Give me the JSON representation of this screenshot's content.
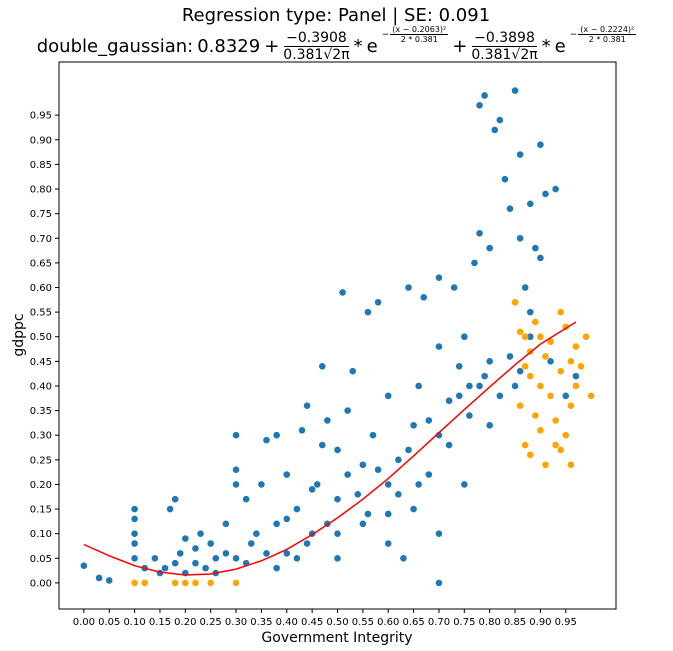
{
  "chart_data": {
    "type": "scatter",
    "title": "Regression type: Panel | SE: 0.091",
    "formula": {
      "name": "double_gaussian:",
      "constant": "0.8329",
      "terms": [
        {
          "op": "+",
          "numerator": "−0.3908",
          "denominator": "0.381√2π",
          "times": "*",
          "base": "e",
          "exp_sign": "−",
          "exp_numerator": "(x − 0.2063)²",
          "exp_denominator": "2 * 0.381"
        },
        {
          "op": "+",
          "numerator": "−0.3898",
          "denominator": "0.381√2π",
          "times": "*",
          "base": "e",
          "exp_sign": "−",
          "exp_numerator": "(x − 0.2224)²",
          "exp_denominator": "2 * 0.381"
        }
      ]
    },
    "x_label": "Government Integrity",
    "y_label": "gdppc",
    "xlim": [
      -0.049,
      1.049
    ],
    "ylim": [
      -0.053,
      1.058
    ],
    "xticks": [
      {
        "value": 0,
        "label": "0.00"
      },
      {
        "value": 0.05,
        "label": "0.05"
      },
      {
        "value": 0.1,
        "label": "0.10"
      },
      {
        "value": 0.15,
        "label": "0.15"
      },
      {
        "value": 0.2,
        "label": "0.20"
      },
      {
        "value": 0.25,
        "label": "0.25"
      },
      {
        "value": 0.3,
        "label": "0.30"
      },
      {
        "value": 0.35,
        "label": "0.35"
      },
      {
        "value": 0.4,
        "label": "0.40"
      },
      {
        "value": 0.45,
        "label": "0.45"
      },
      {
        "value": 0.5,
        "label": "0.50"
      },
      {
        "value": 0.55,
        "label": "0.55"
      },
      {
        "value": 0.6,
        "label": "0.60"
      },
      {
        "value": 0.65,
        "label": "0.65"
      },
      {
        "value": 0.7,
        "label": "0.70"
      },
      {
        "value": 0.75,
        "label": "0.75"
      },
      {
        "value": 0.8,
        "label": "0.80"
      },
      {
        "value": 0.85,
        "label": "0.85"
      },
      {
        "value": 0.9,
        "label": "0.90"
      },
      {
        "value": 0.95,
        "label": "0.95"
      }
    ],
    "yticks": [
      {
        "value": 0,
        "label": "0.00"
      },
      {
        "value": 0.05,
        "label": "0.05"
      },
      {
        "value": 0.1,
        "label": "0.10"
      },
      {
        "value": 0.15,
        "label": "0.15"
      },
      {
        "value": 0.2,
        "label": "0.20"
      },
      {
        "value": 0.25,
        "label": "0.25"
      },
      {
        "value": 0.3,
        "label": "0.30"
      },
      {
        "value": 0.35,
        "label": "0.35"
      },
      {
        "value": 0.4,
        "label": "0.40"
      },
      {
        "value": 0.45,
        "label": "0.45"
      },
      {
        "value": 0.5,
        "label": "0.50"
      },
      {
        "value": 0.55,
        "label": "0.55"
      },
      {
        "value": 0.6,
        "label": "0.60"
      },
      {
        "value": 0.65,
        "label": "0.65"
      },
      {
        "value": 0.7,
        "label": "0.70"
      },
      {
        "value": 0.75,
        "label": "0.75"
      },
      {
        "value": 0.8,
        "label": "0.80"
      },
      {
        "value": 0.85,
        "label": "0.85"
      },
      {
        "value": 0.9,
        "label": "0.90"
      },
      {
        "value": 0.95,
        "label": "0.95"
      }
    ],
    "series": [
      {
        "kind": "points",
        "color": "#1f77b4",
        "x": [
          0.0,
          0.03,
          0.05,
          0.1,
          0.1,
          0.1,
          0.1,
          0.1,
          0.12,
          0.14,
          0.15,
          0.17,
          0.18,
          0.19,
          0.2,
          0.22,
          0.23,
          0.25,
          0.26,
          0.28,
          0.3,
          0.3,
          0.3,
          0.3,
          0.32,
          0.33,
          0.35,
          0.36,
          0.38,
          0.38,
          0.4,
          0.4,
          0.42,
          0.43,
          0.44,
          0.45,
          0.46,
          0.47,
          0.48,
          0.5,
          0.5,
          0.5,
          0.51,
          0.52,
          0.53,
          0.55,
          0.55,
          0.56,
          0.57,
          0.58,
          0.6,
          0.6,
          0.6,
          0.62,
          0.63,
          0.64,
          0.65,
          0.65,
          0.66,
          0.67,
          0.68,
          0.7,
          0.7,
          0.7,
          0.7,
          0.7,
          0.72,
          0.73,
          0.74,
          0.75,
          0.75,
          0.76,
          0.77,
          0.78,
          0.78,
          0.79,
          0.8,
          0.8,
          0.8,
          0.81,
          0.82,
          0.83,
          0.84,
          0.85,
          0.85,
          0.86,
          0.86,
          0.87,
          0.88,
          0.88,
          0.89,
          0.9,
          0.9,
          0.91,
          0.92,
          0.93,
          0.95,
          0.97,
          0.84,
          0.82,
          0.79,
          0.76,
          0.72,
          0.68,
          0.64,
          0.62,
          0.58,
          0.54,
          0.52,
          0.48,
          0.44,
          0.42,
          0.38,
          0.36,
          0.34,
          0.32,
          0.28,
          0.26,
          0.24,
          0.22,
          0.2,
          0.18,
          0.16,
          0.47,
          0.56,
          0.6,
          0.66,
          0.74,
          0.78,
          0.86,
          0.88,
          0.4,
          0.45,
          0.5
        ],
        "values": [
          0.035,
          0.01,
          0.005,
          0.15,
          0.13,
          0.1,
          0.08,
          0.05,
          0.03,
          0.05,
          0.02,
          0.15,
          0.17,
          0.06,
          0.09,
          0.04,
          0.1,
          0.08,
          0.02,
          0.12,
          0.3,
          0.23,
          0.2,
          0.05,
          0.17,
          0.08,
          0.2,
          0.29,
          0.12,
          0.3,
          0.06,
          0.22,
          0.15,
          0.31,
          0.36,
          0.1,
          0.2,
          0.44,
          0.33,
          0.05,
          0.17,
          0.27,
          0.59,
          0.35,
          0.43,
          0.12,
          0.24,
          0.55,
          0.3,
          0.57,
          0.08,
          0.2,
          0.38,
          0.25,
          0.05,
          0.6,
          0.15,
          0.32,
          0.4,
          0.58,
          0.22,
          0.0,
          0.1,
          0.3,
          0.48,
          0.62,
          0.37,
          0.6,
          0.44,
          0.2,
          0.5,
          0.4,
          0.65,
          0.71,
          0.97,
          0.99,
          0.32,
          0.45,
          0.68,
          0.92,
          0.94,
          0.82,
          0.76,
          1.0,
          0.4,
          0.87,
          0.7,
          0.6,
          0.5,
          0.77,
          0.68,
          0.89,
          0.66,
          0.79,
          0.45,
          0.8,
          0.38,
          0.42,
          0.46,
          0.38,
          0.42,
          0.34,
          0.28,
          0.33,
          0.27,
          0.18,
          0.23,
          0.18,
          0.22,
          0.12,
          0.08,
          0.05,
          0.03,
          0.06,
          0.1,
          0.04,
          0.06,
          0.05,
          0.03,
          0.07,
          0.02,
          0.04,
          0.03,
          0.28,
          0.14,
          0.14,
          0.2,
          0.38,
          0.4,
          0.43,
          0.55,
          0.13,
          0.19,
          0.1
        ]
      },
      {
        "kind": "points",
        "color": "#ffa500",
        "x": [
          0.1,
          0.12,
          0.18,
          0.2,
          0.22,
          0.25,
          0.3,
          0.85,
          0.86,
          0.87,
          0.88,
          0.87,
          0.88,
          0.86,
          0.87,
          0.88,
          0.89,
          0.9,
          0.91,
          0.9,
          0.91,
          0.92,
          0.92,
          0.93,
          0.93,
          0.94,
          0.94,
          0.95,
          0.95,
          0.96,
          0.96,
          0.97,
          0.97,
          0.98,
          0.99,
          1.0,
          0.89,
          0.9,
          0.94,
          0.96
        ],
        "values": [
          0.0,
          0.0,
          0.0,
          0.0,
          0.0,
          0.0,
          0.0,
          0.57,
          0.51,
          0.5,
          0.47,
          0.44,
          0.42,
          0.36,
          0.28,
          0.26,
          0.34,
          0.31,
          0.24,
          0.4,
          0.46,
          0.49,
          0.38,
          0.33,
          0.28,
          0.55,
          0.43,
          0.3,
          0.52,
          0.24,
          0.36,
          0.48,
          0.4,
          0.44,
          0.5,
          0.38,
          0.53,
          0.5,
          0.27,
          0.45
        ]
      },
      {
        "kind": "line",
        "color": "#ff0000",
        "x": [
          0,
          0.05,
          0.1,
          0.15,
          0.2,
          0.25,
          0.3,
          0.35,
          0.4,
          0.45,
          0.5,
          0.55,
          0.6,
          0.65,
          0.7,
          0.75,
          0.8,
          0.85,
          0.9,
          0.97
        ],
        "values": [
          0.078,
          0.055,
          0.035,
          0.022,
          0.016,
          0.018,
          0.028,
          0.045,
          0.068,
          0.098,
          0.132,
          0.17,
          0.212,
          0.258,
          0.305,
          0.352,
          0.398,
          0.443,
          0.485,
          0.53
        ]
      }
    ]
  }
}
